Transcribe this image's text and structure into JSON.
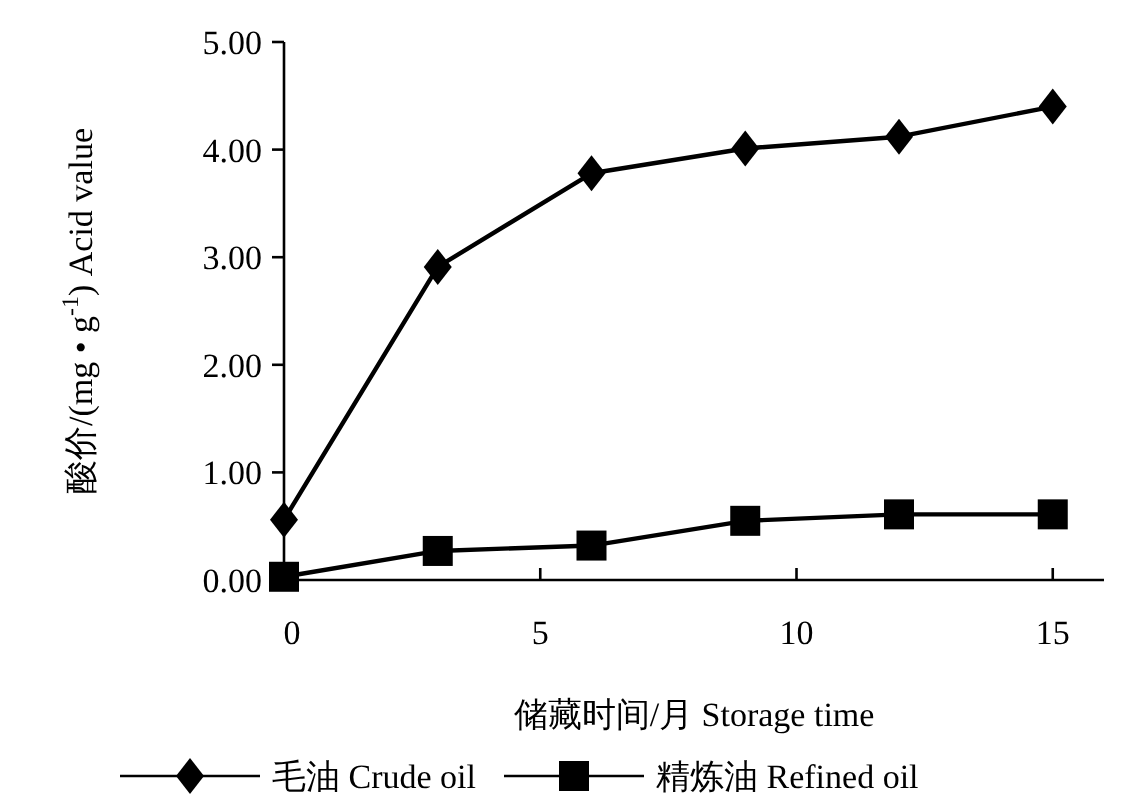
{
  "chart_data": {
    "type": "line",
    "xlabel": "储藏时间/月  Storage time",
    "ylabel": "酸价/(mg • g$^{-1}$)  Acid value",
    "xlim": [
      0,
      16
    ],
    "xticks": [
      0,
      5,
      10,
      15
    ],
    "ylim": [
      0,
      5
    ],
    "yticks": [
      {
        "value": 0,
        "label": "0.00"
      },
      {
        "value": 1,
        "label": "1.00"
      },
      {
        "value": 2,
        "label": "2.00"
      },
      {
        "value": 3,
        "label": "3.00"
      },
      {
        "value": 4,
        "label": "4.00"
      },
      {
        "value": 5,
        "label": "5.00"
      }
    ],
    "x": [
      0,
      3,
      6,
      9,
      12,
      15
    ],
    "series": [
      {
        "name": "毛油 Crude oil",
        "color": "#000000",
        "marker": "diamond",
        "values": [
          0.56,
          2.91,
          3.78,
          4.01,
          4.12,
          4.4
        ]
      },
      {
        "name": "精炼油 Refined oil",
        "color": "#000000",
        "marker": "square",
        "values": [
          0.03,
          0.27,
          0.32,
          0.55,
          0.61,
          0.61
        ]
      }
    ],
    "legend": "bottom",
    "grid": false,
    "line_style": "solid"
  }
}
